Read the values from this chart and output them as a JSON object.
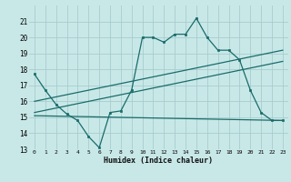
{
  "xlabel": "Humidex (Indice chaleur)",
  "bg_color": "#c8e8e8",
  "grid_color": "#a8cccc",
  "line_color": "#1a6b6b",
  "xlim": [
    -0.5,
    23.5
  ],
  "ylim": [
    13,
    22
  ],
  "yticks": [
    13,
    14,
    15,
    16,
    17,
    18,
    19,
    20,
    21
  ],
  "xticks": [
    0,
    1,
    2,
    3,
    4,
    5,
    6,
    7,
    8,
    9,
    10,
    11,
    12,
    13,
    14,
    15,
    16,
    17,
    18,
    19,
    20,
    21,
    22,
    23
  ],
  "line1_x": [
    0,
    1,
    2,
    3,
    4,
    5,
    6,
    7,
    8,
    9,
    10,
    11,
    12,
    13,
    14,
    15,
    16,
    17,
    18,
    19,
    20,
    21,
    22,
    23
  ],
  "line1_y": [
    17.7,
    16.7,
    15.8,
    15.2,
    14.8,
    13.8,
    13.1,
    15.3,
    15.4,
    16.7,
    20.0,
    20.0,
    19.7,
    20.2,
    20.2,
    21.2,
    20.0,
    19.2,
    19.2,
    18.6,
    16.7,
    15.3,
    14.8,
    14.8
  ],
  "line2_x": [
    0,
    23
  ],
  "line2_y": [
    16.0,
    19.2
  ],
  "line3_x": [
    0,
    23
  ],
  "line3_y": [
    15.3,
    18.5
  ],
  "line4_x": [
    0,
    23
  ],
  "line4_y": [
    15.1,
    14.8
  ]
}
